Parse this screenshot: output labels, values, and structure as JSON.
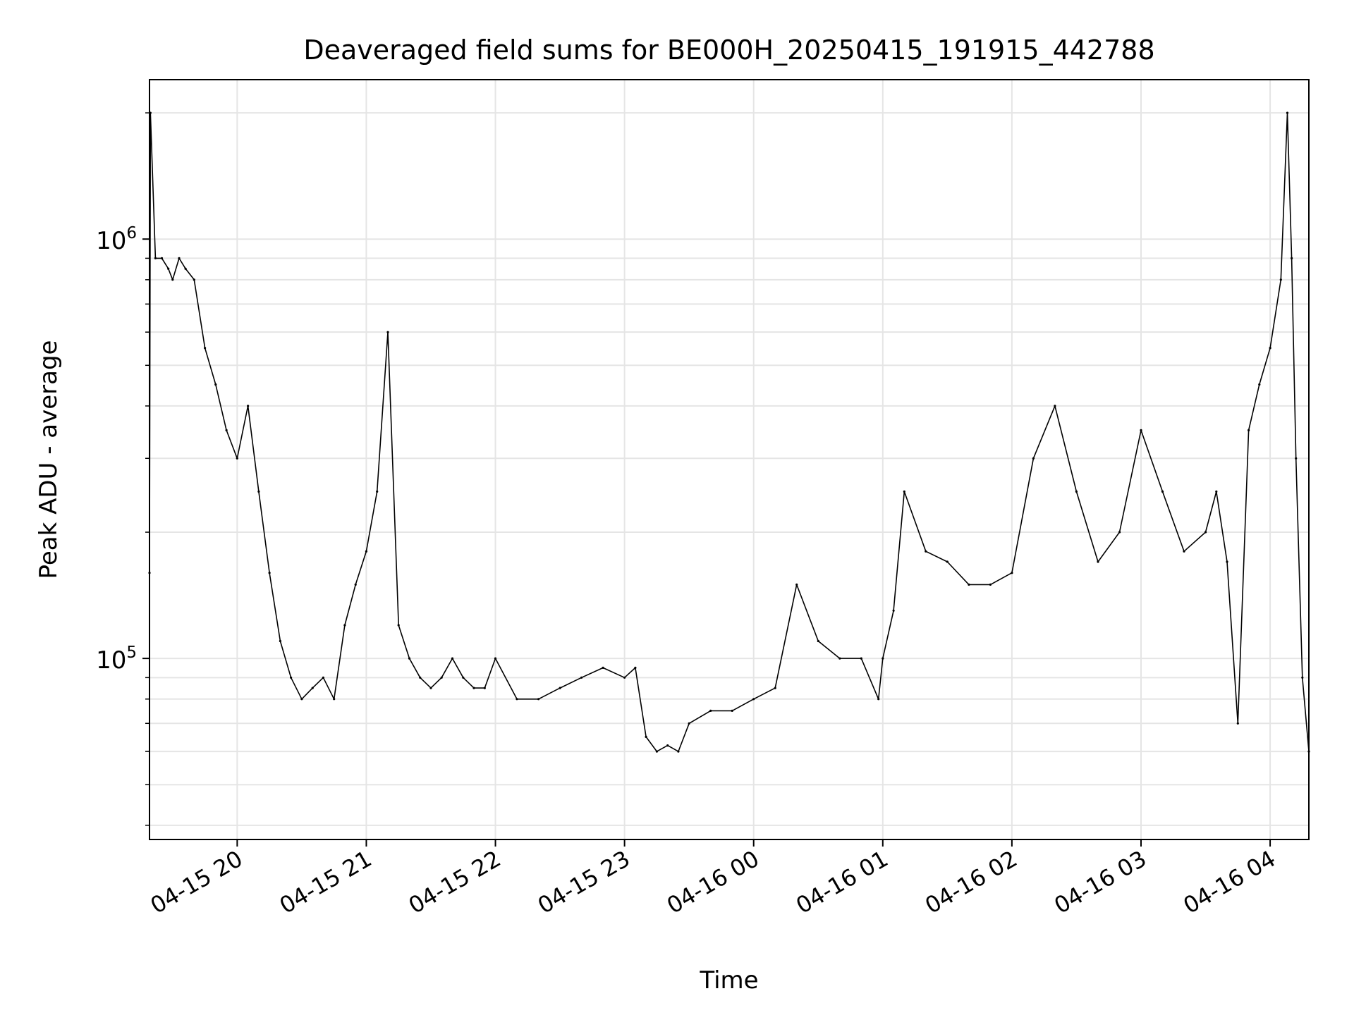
{
  "chart_data": {
    "type": "line",
    "title": "Deaveraged field sums for BE000H_20250415_191915_442788",
    "xlabel": "Time",
    "ylabel": "Peak ADU - average",
    "xlim": [
      "2025-04-15T19:19:15",
      "2025-04-16T04:18:00"
    ],
    "ylim": [
      37000,
      2400000
    ],
    "yscale": "log",
    "grid": true,
    "line_color": "#000000",
    "grid_color": "#e5e5e5",
    "x_ticks": [
      {
        "value": "2025-04-15T20:00",
        "label": "04-15 20"
      },
      {
        "value": "2025-04-15T21:00",
        "label": "04-15 21"
      },
      {
        "value": "2025-04-15T22:00",
        "label": "04-15 22"
      },
      {
        "value": "2025-04-15T23:00",
        "label": "04-15 23"
      },
      {
        "value": "2025-04-16T00:00",
        "label": "04-16 00"
      },
      {
        "value": "2025-04-16T01:00",
        "label": "04-16 01"
      },
      {
        "value": "2025-04-16T02:00",
        "label": "04-16 02"
      },
      {
        "value": "2025-04-16T03:00",
        "label": "04-16 03"
      },
      {
        "value": "2025-04-16T04:00",
        "label": "04-16 04"
      }
    ],
    "y_major_ticks": [
      {
        "value": 100000,
        "base": "10",
        "exp": "5"
      },
      {
        "value": 1000000,
        "base": "10",
        "exp": "6"
      }
    ],
    "y_minor_ticks": [
      40000,
      50000,
      60000,
      70000,
      80000,
      90000,
      200000,
      300000,
      400000,
      500000,
      600000,
      700000,
      800000,
      900000,
      2000000
    ],
    "series": [
      {
        "x": [
          "2025-04-15T19:19:15",
          "2025-04-15T19:19:40",
          "2025-04-15T19:22:00",
          "2025-04-15T19:25:00",
          "2025-04-15T19:28:00",
          "2025-04-15T19:30:00",
          "2025-04-15T19:33:00",
          "2025-04-15T19:36:00",
          "2025-04-15T19:40:00",
          "2025-04-15T19:45:00",
          "2025-04-15T19:50:00",
          "2025-04-15T19:55:00",
          "2025-04-15T20:00:00",
          "2025-04-15T20:05:00",
          "2025-04-15T20:10:00",
          "2025-04-15T20:15:00",
          "2025-04-15T20:20:00",
          "2025-04-15T20:25:00",
          "2025-04-15T20:30:00",
          "2025-04-15T20:35:00",
          "2025-04-15T20:40:00",
          "2025-04-15T20:45:00",
          "2025-04-15T20:50:00",
          "2025-04-15T20:55:00",
          "2025-04-15T21:00:00",
          "2025-04-15T21:05:00",
          "2025-04-15T21:10:00",
          "2025-04-15T21:15:00",
          "2025-04-15T21:20:00",
          "2025-04-15T21:25:00",
          "2025-04-15T21:30:00",
          "2025-04-15T21:35:00",
          "2025-04-15T21:40:00",
          "2025-04-15T21:45:00",
          "2025-04-15T21:50:00",
          "2025-04-15T21:55:00",
          "2025-04-15T22:00:00",
          "2025-04-15T22:10:00",
          "2025-04-15T22:20:00",
          "2025-04-15T22:30:00",
          "2025-04-15T22:40:00",
          "2025-04-15T22:50:00",
          "2025-04-15T23:00:00",
          "2025-04-15T23:05:00",
          "2025-04-15T23:10:00",
          "2025-04-15T23:15:00",
          "2025-04-15T23:20:00",
          "2025-04-15T23:25:00",
          "2025-04-15T23:30:00",
          "2025-04-15T23:40:00",
          "2025-04-15T23:50:00",
          "2025-04-16T00:00:00",
          "2025-04-16T00:10:00",
          "2025-04-16T00:20:00",
          "2025-04-16T00:30:00",
          "2025-04-16T00:40:00",
          "2025-04-16T00:50:00",
          "2025-04-16T00:58:00",
          "2025-04-16T01:00:00",
          "2025-04-16T01:05:00",
          "2025-04-16T01:10:00",
          "2025-04-16T01:20:00",
          "2025-04-16T01:30:00",
          "2025-04-16T01:40:00",
          "2025-04-16T01:50:00",
          "2025-04-16T02:00:00",
          "2025-04-16T02:10:00",
          "2025-04-16T02:20:00",
          "2025-04-16T02:30:00",
          "2025-04-16T02:40:00",
          "2025-04-16T02:50:00",
          "2025-04-16T03:00:00",
          "2025-04-16T03:10:00",
          "2025-04-16T03:20:00",
          "2025-04-16T03:30:00",
          "2025-04-16T03:35:00",
          "2025-04-16T03:40:00",
          "2025-04-16T03:45:00",
          "2025-04-16T03:50:00",
          "2025-04-16T03:55:00",
          "2025-04-16T04:00:00",
          "2025-04-16T04:05:00",
          "2025-04-16T04:08:00",
          "2025-04-16T04:10:00",
          "2025-04-16T04:12:00",
          "2025-04-16T04:15:00",
          "2025-04-16T04:18:00"
        ],
        "y": [
          160000,
          2000000,
          900000,
          900000,
          850000,
          800000,
          900000,
          850000,
          800000,
          550000,
          450000,
          350000,
          300000,
          400000,
          250000,
          160000,
          110000,
          90000,
          80000,
          85000,
          90000,
          80000,
          120000,
          150000,
          180000,
          250000,
          600000,
          120000,
          100000,
          90000,
          85000,
          90000,
          100000,
          90000,
          85000,
          85000,
          100000,
          80000,
          80000,
          85000,
          90000,
          95000,
          90000,
          95000,
          65000,
          60000,
          62000,
          60000,
          70000,
          75000,
          75000,
          80000,
          85000,
          150000,
          110000,
          100000,
          100000,
          80000,
          100000,
          130000,
          250000,
          180000,
          170000,
          150000,
          150000,
          160000,
          300000,
          400000,
          250000,
          170000,
          200000,
          350000,
          250000,
          180000,
          200000,
          250000,
          170000,
          70000,
          350000,
          450000,
          550000,
          800000,
          2000000,
          900000,
          300000,
          90000,
          60000
        ]
      }
    ]
  }
}
